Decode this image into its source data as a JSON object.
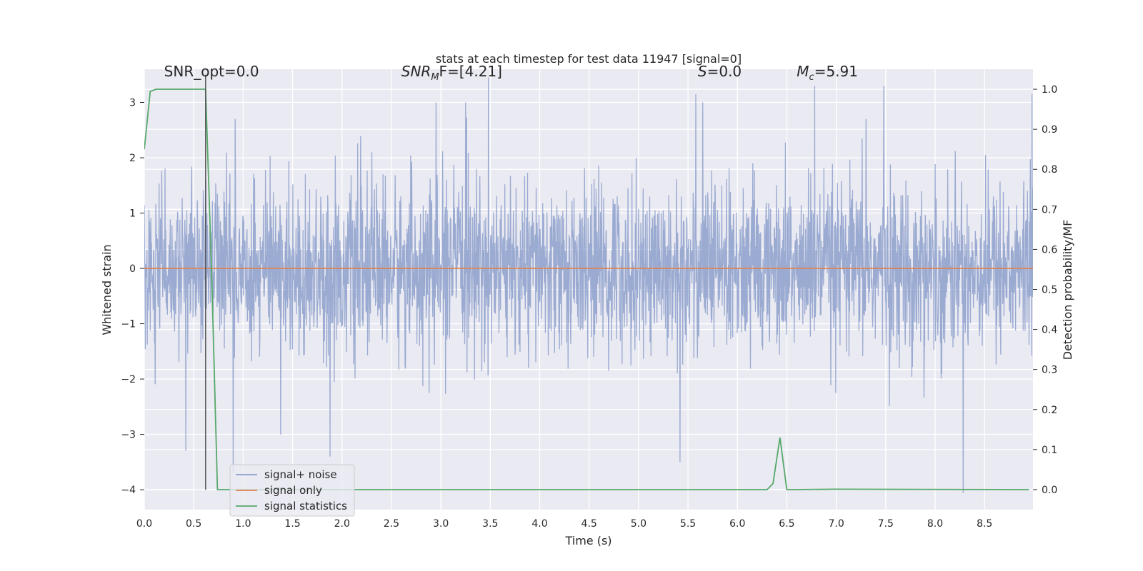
{
  "chart_data": {
    "type": "line",
    "title": "stats at each timestep for test data 11947 [signal=0]",
    "xlabel": "Time (s)",
    "ylabel": "Whitened strain",
    "y2label": "Detection probability/MF",
    "xlim": [
      0,
      8.99
    ],
    "ylim": [
      -4.36,
      3.6
    ],
    "y2lim": [
      -0.05,
      1.05
    ],
    "grid": true,
    "legend_position": "lower-left",
    "x_ticks": [
      "0.0",
      "0.5",
      "1.0",
      "1.5",
      "2.0",
      "2.5",
      "3.0",
      "3.5",
      "4.0",
      "4.5",
      "5.0",
      "5.5",
      "6.0",
      "6.5",
      "7.0",
      "7.5",
      "8.0",
      "8.5"
    ],
    "y_ticks": [
      "3",
      "2",
      "1",
      "0",
      "−1",
      "−2",
      "−3",
      "−4"
    ],
    "y2_ticks": [
      "1.0",
      "0.9",
      "0.8",
      "0.7",
      "0.6",
      "0.5",
      "0.4",
      "0.3",
      "0.2",
      "0.1",
      "0.0"
    ],
    "annotations": [
      {
        "id": "snr-opt",
        "text": "SNR_opt=0.0",
        "x": 0.2,
        "y": 3.55
      },
      {
        "id": "snr-mf",
        "prefix": "SNR",
        "sub": "M",
        "suffix": "F=[4.21]",
        "x": 2.6,
        "y": 3.55
      },
      {
        "id": "s-stat",
        "prefix": "S",
        "sub": "",
        "suffix": "=0.0",
        "x": 5.6,
        "y": 3.55
      },
      {
        "id": "mc",
        "prefix": "M",
        "sub": "c",
        "suffix": "=5.91",
        "x": 6.6,
        "y": 3.55
      }
    ],
    "vline": {
      "x": 0.62,
      "y_from": -4.0,
      "y_to": 3.5,
      "color": "#555555"
    },
    "series": [
      {
        "name": "signal+ noise",
        "color": "#8c9fcb",
        "axis": "left",
        "kind": "noise",
        "sigma": 0.75,
        "peaks": [
          {
            "x": 0.42,
            "y": -3.3
          },
          {
            "x": 0.9,
            "y": -3.7
          },
          {
            "x": 1.38,
            "y": -3.0
          },
          {
            "x": 1.88,
            "y": -3.4
          },
          {
            "x": 2.95,
            "y": 3.0
          },
          {
            "x": 3.48,
            "y": 3.45
          },
          {
            "x": 3.25,
            "y": 3.0
          },
          {
            "x": 5.42,
            "y": -3.5
          },
          {
            "x": 5.58,
            "y": 3.15
          },
          {
            "x": 5.65,
            "y": 3.0
          },
          {
            "x": 6.78,
            "y": 3.3
          },
          {
            "x": 7.48,
            "y": 3.3
          },
          {
            "x": 8.98,
            "y": 3.15
          },
          {
            "x": 7.3,
            "y": 2.7
          },
          {
            "x": 0.92,
            "y": 2.7
          }
        ]
      },
      {
        "name": "signal only",
        "color": "#dd8452",
        "axis": "left",
        "x": [
          0,
          8.99
        ],
        "y": [
          0,
          0
        ]
      },
      {
        "name": "signal statistics",
        "color": "#55a868",
        "axis": "right",
        "x": [
          0,
          0.06,
          0.12,
          0.18,
          0.5,
          0.62,
          0.68,
          0.74,
          6.3,
          6.36,
          6.43,
          6.5,
          6.56,
          7.0,
          8.95
        ],
        "y": [
          0.85,
          0.995,
          1.0,
          1.0,
          1.0,
          1.0,
          0.55,
          0.0,
          0.0,
          0.015,
          0.13,
          0.0,
          0.0,
          0.001,
          0.0
        ]
      }
    ]
  }
}
